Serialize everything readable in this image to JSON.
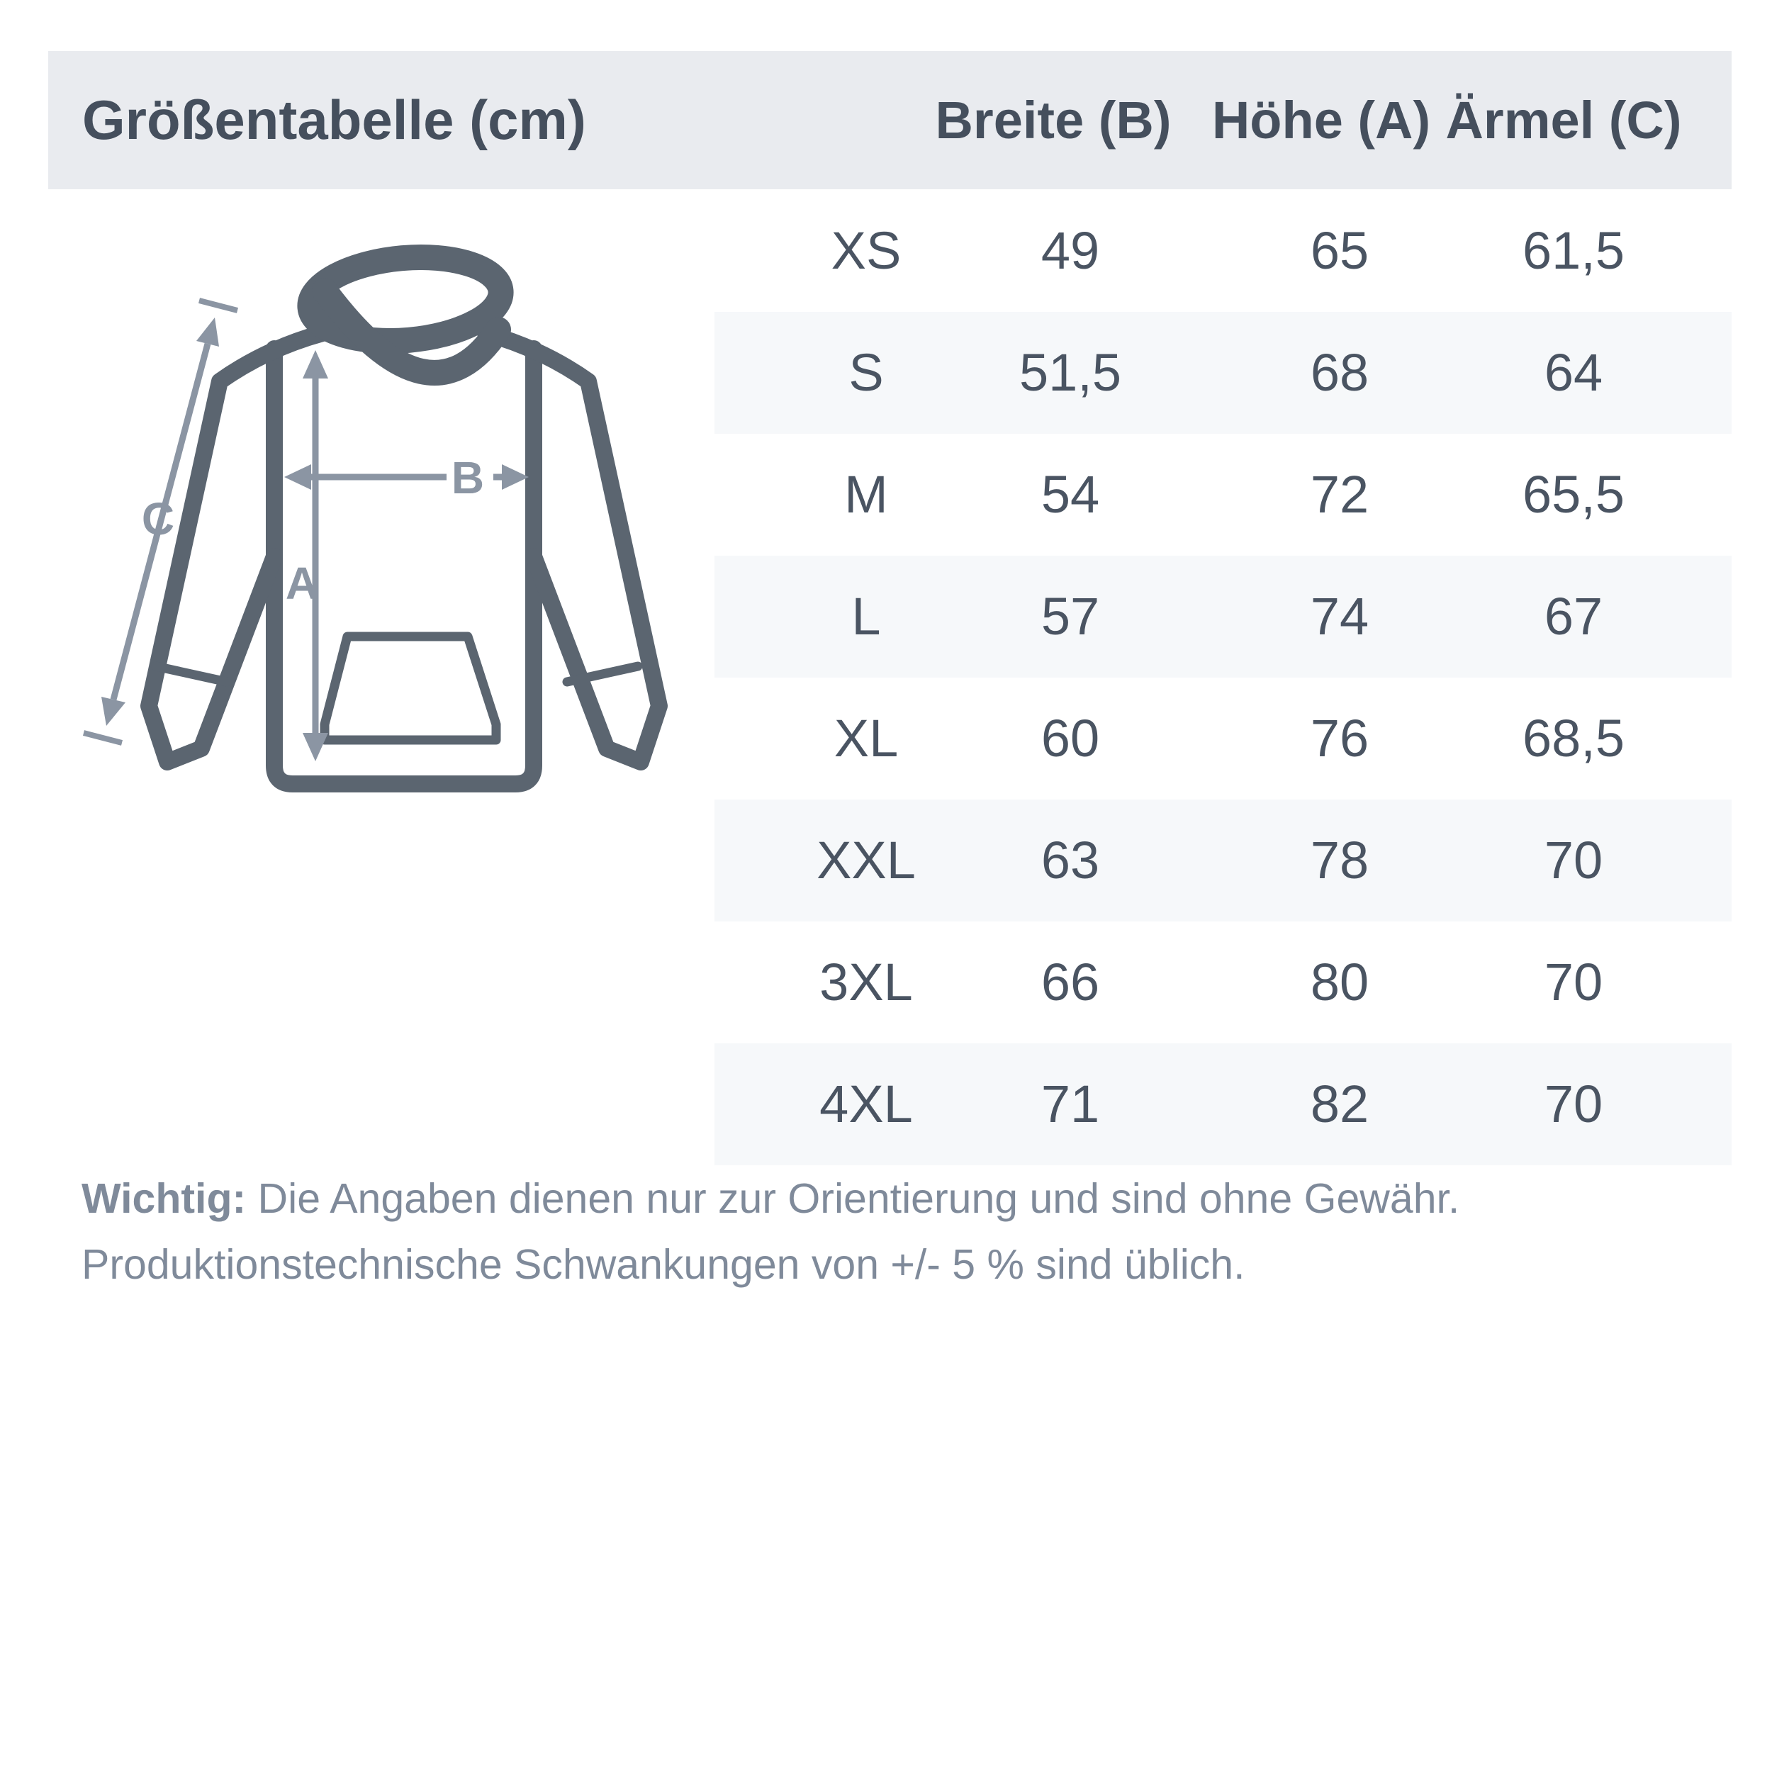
{
  "header": {
    "title": "Größentabelle (cm)",
    "columns": [
      "Breite (B)",
      "Höhe (A)",
      "Ärmel (C)"
    ]
  },
  "table": {
    "rows": [
      {
        "size": "XS",
        "breite": "49",
        "hoehe": "65",
        "aermel": "61,5"
      },
      {
        "size": "S",
        "breite": "51,5",
        "hoehe": "68",
        "aermel": "64"
      },
      {
        "size": "M",
        "breite": "54",
        "hoehe": "72",
        "aermel": "65,5"
      },
      {
        "size": "L",
        "breite": "57",
        "hoehe": "74",
        "aermel": "67"
      },
      {
        "size": "XL",
        "breite": "60",
        "hoehe": "76",
        "aermel": "68,5"
      },
      {
        "size": "XXL",
        "breite": "63",
        "hoehe": "78",
        "aermel": "70"
      },
      {
        "size": "3XL",
        "breite": "66",
        "hoehe": "80",
        "aermel": "70"
      },
      {
        "size": "4XL",
        "breite": "71",
        "hoehe": "82",
        "aermel": "70"
      }
    ]
  },
  "diagram": {
    "labels": {
      "a": "A",
      "b": "B",
      "c": "C"
    }
  },
  "footer": {
    "bold": "Wichtig:",
    "line1": " Die Angaben dienen nur zur Orientierung und sind ohne Gewähr.",
    "line2": "Produktionstechnische Schwankungen von +/- 5 % sind üblich."
  },
  "colors": {
    "header_bg": "#e9ebef",
    "stripe_bg": "#f6f8fa",
    "header_text": "#454f5d",
    "table_text": "#4a5462",
    "footer_text": "#7f8a9a",
    "hoodie_outline": "#5b6570",
    "dimension_arrow": "#8b95a3"
  }
}
